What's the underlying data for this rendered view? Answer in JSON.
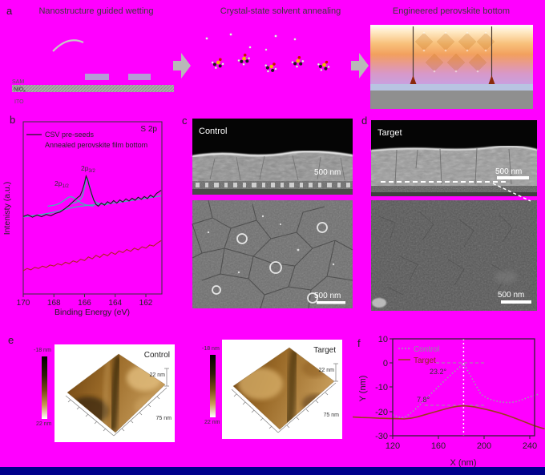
{
  "colors": {
    "background": "#FF00FF",
    "navy_strip": "#00008B",
    "xps_seed_curve": "#1a1a1a",
    "xps_fit": "#3cb8b2",
    "xps_annealed_curve": "#b22222",
    "profile_control": "#98a0aa",
    "profile_target": "#9c3b1e",
    "afm_brown": "#9a6a28",
    "perovskite_orange": "#f2a05e"
  },
  "figure": {
    "letters": [
      "a",
      "b",
      "c",
      "d",
      "e",
      "f"
    ],
    "scale_bar": "500 nm",
    "panel_a": {
      "titles": [
        "Nanostructure guided wetting",
        "Crystal-state solvent annealing",
        "Engineered perovskite bottom"
      ],
      "sam": "SAM",
      "niox_base": "NiO",
      "niox_sub": "x",
      "ito": "ITO"
    },
    "panel_b": {
      "peak_base": "2p",
      "peak1_sub": "1/2",
      "peak2_sub": "3/2"
    },
    "panel_c": {
      "label": "Control"
    },
    "panel_d": {
      "label": "Target"
    },
    "panel_e": {
      "control_label": "Control",
      "target_label": "Target",
      "cb_top": "-18 nm",
      "cb_bottom": "22 nm",
      "z_axis": "22 nm",
      "x_axis": "75 nm"
    }
  },
  "chart_data": [
    {
      "id": "xps_s2p",
      "type": "line",
      "title": "S 2p",
      "xlabel": "Binding Energy (eV)",
      "ylabel": "Intenisty (a.u.)",
      "x_ticks": [
        170,
        168,
        166,
        164,
        162
      ],
      "xlim": [
        170,
        161
      ],
      "legend_position": "top-left",
      "series": [
        {
          "name": "CSV pre-seeds",
          "color": "#1a1a1a",
          "points": [
            [
              170.0,
              45
            ],
            [
              169.7,
              46
            ],
            [
              169.4,
              44.6
            ],
            [
              169.1,
              45.8
            ],
            [
              168.8,
              44.9
            ],
            [
              168.5,
              46.2
            ],
            [
              168.2,
              45.4
            ],
            [
              167.9,
              46.8
            ],
            [
              167.6,
              47.6
            ],
            [
              167.3,
              49.4
            ],
            [
              167.0,
              51.5
            ],
            [
              166.8,
              53.2
            ],
            [
              166.6,
              54.8
            ],
            [
              166.45,
              56.0
            ],
            [
              166.3,
              57.0
            ],
            [
              166.15,
              60.0
            ],
            [
              166.0,
              64.5
            ],
            [
              165.9,
              68.5
            ],
            [
              165.8,
              66.5
            ],
            [
              165.7,
              63.0
            ],
            [
              165.55,
              58.5
            ],
            [
              165.4,
              54.5
            ],
            [
              165.25,
              52.0
            ],
            [
              165.1,
              51.0
            ],
            [
              164.9,
              52.8
            ],
            [
              164.7,
              51.6
            ],
            [
              164.5,
              53.6
            ],
            [
              164.3,
              52.4
            ],
            [
              164.1,
              54.2
            ],
            [
              163.9,
              52.8
            ],
            [
              163.7,
              54.6
            ],
            [
              163.5,
              53.4
            ],
            [
              163.3,
              55.2
            ],
            [
              163.1,
              54.0
            ],
            [
              162.9,
              55.6
            ],
            [
              162.7,
              54.4
            ],
            [
              162.5,
              56.2
            ],
            [
              162.3,
              55.0
            ],
            [
              162.1,
              56.6
            ],
            [
              161.9,
              55.4
            ],
            [
              161.7,
              57.4
            ],
            [
              161.5,
              56.2
            ],
            [
              161.3,
              58.4
            ],
            [
              161.1,
              59.6
            ],
            [
              161.0,
              60.2
            ]
          ]
        },
        {
          "name": "fit 2p3/2",
          "color": "#3cb8b2",
          "points": [
            [
              167.0,
              52.4
            ],
            [
              166.8,
              52.6
            ],
            [
              166.6,
              53.0
            ],
            [
              166.45,
              53.6
            ],
            [
              166.3,
              54.6
            ],
            [
              166.15,
              56.6
            ],
            [
              166.05,
              60.0
            ],
            [
              165.95,
              64.0
            ],
            [
              165.9,
              66.5
            ],
            [
              165.85,
              67.3
            ],
            [
              165.8,
              66.8
            ],
            [
              165.7,
              64.0
            ],
            [
              165.6,
              60.0
            ],
            [
              165.5,
              56.6
            ],
            [
              165.4,
              54.6
            ],
            [
              165.25,
              53.2
            ],
            [
              165.1,
              52.6
            ],
            [
              164.9,
              52.2
            ],
            [
              164.7,
              52.0
            ],
            [
              164.5,
              51.9
            ]
          ]
        },
        {
          "name": "fit 2p1/2",
          "color": "#3cb8b2",
          "points": [
            [
              168.4,
              51.0
            ],
            [
              168.2,
              51.2
            ],
            [
              168.0,
              51.5
            ],
            [
              167.8,
              52.0
            ],
            [
              167.6,
              52.8
            ],
            [
              167.4,
              53.9
            ],
            [
              167.2,
              55.2
            ],
            [
              167.05,
              56.1
            ],
            [
              166.9,
              56.5
            ],
            [
              166.75,
              56.1
            ],
            [
              166.6,
              55.2
            ],
            [
              166.4,
              53.9
            ],
            [
              166.2,
              52.8
            ],
            [
              166.0,
              52.0
            ],
            [
              165.8,
              51.5
            ],
            [
              165.6,
              51.2
            ],
            [
              165.4,
              51.0
            ]
          ]
        },
        {
          "name": "fit baseline",
          "color": "#3cb8b2",
          "points": [
            [
              170.0,
              44.8
            ],
            [
              169.5,
              45.3
            ],
            [
              169.0,
              45.9
            ],
            [
              168.5,
              46.6
            ],
            [
              168.0,
              47.5
            ],
            [
              167.5,
              48.6
            ],
            [
              167.0,
              49.7
            ],
            [
              166.5,
              50.6
            ],
            [
              166.0,
              51.2
            ],
            [
              165.5,
              51.7
            ],
            [
              165.0,
              52.1
            ],
            [
              164.5,
              52.5
            ],
            [
              164.0,
              53.0
            ],
            [
              163.5,
              53.6
            ],
            [
              163.0,
              54.2
            ],
            [
              162.5,
              54.9
            ],
            [
              162.0,
              55.6
            ],
            [
              161.5,
              56.3
            ],
            [
              161.0,
              57.0
            ]
          ]
        },
        {
          "name": "Annealed perovskite film bottom",
          "color": "#b22222",
          "points": [
            [
              170.0,
              13.5
            ],
            [
              169.75,
              14.8
            ],
            [
              169.5,
              14.0
            ],
            [
              169.25,
              15.5
            ],
            [
              169.0,
              14.8
            ],
            [
              168.75,
              16.2
            ],
            [
              168.5,
              15.4
            ],
            [
              168.25,
              16.8
            ],
            [
              168.0,
              16.2
            ],
            [
              167.75,
              17.6
            ],
            [
              167.5,
              16.8
            ],
            [
              167.25,
              18.4
            ],
            [
              167.0,
              17.6
            ],
            [
              166.75,
              19.2
            ],
            [
              166.5,
              18.4
            ],
            [
              166.25,
              20.2
            ],
            [
              166.0,
              19.4
            ],
            [
              165.75,
              21.5
            ],
            [
              165.5,
              20.4
            ],
            [
              165.25,
              22.4
            ],
            [
              165.0,
              21.2
            ],
            [
              164.75,
              23.2
            ],
            [
              164.5,
              22.2
            ],
            [
              164.25,
              24.2
            ],
            [
              164.0,
              23.0
            ],
            [
              163.75,
              25.0
            ],
            [
              163.5,
              24.0
            ],
            [
              163.25,
              25.8
            ],
            [
              163.0,
              24.8
            ],
            [
              162.75,
              26.6
            ],
            [
              162.5,
              25.6
            ],
            [
              162.25,
              27.4
            ],
            [
              162.0,
              26.6
            ],
            [
              161.75,
              28.4
            ],
            [
              161.5,
              27.8
            ],
            [
              161.25,
              29.6
            ],
            [
              161.0,
              31.0
            ]
          ]
        }
      ]
    },
    {
      "id": "afm_line_profile",
      "type": "line",
      "xlabel": "X (nm)",
      "ylabel": "Y (nm)",
      "x_ticks": [
        120,
        160,
        200,
        240
      ],
      "y_ticks": [
        10,
        0,
        -10,
        -20,
        -30
      ],
      "xlim": [
        120,
        244
      ],
      "ylim": [
        -30,
        10
      ],
      "annotations": {
        "control_angle": "23.2°",
        "target_angle": "7.8°"
      },
      "series": [
        {
          "name": "Control",
          "color": "#98a0aa",
          "points": [
            [
              120,
              -21.4
            ],
            [
              124,
              -22.1
            ],
            [
              128,
              -22.6
            ],
            [
              132,
              -22.0
            ],
            [
              136,
              -20.6
            ],
            [
              140,
              -19.0
            ],
            [
              144,
              -17.2
            ],
            [
              148,
              -15.2
            ],
            [
              152,
              -13.4
            ],
            [
              156,
              -11.6
            ],
            [
              160,
              -9.8
            ],
            [
              164,
              -8.0
            ],
            [
              168,
              -6.2
            ],
            [
              172,
              -4.4
            ],
            [
              176,
              -2.8
            ],
            [
              179,
              -1.6
            ],
            [
              182,
              -0.4
            ],
            [
              184,
              -1.8
            ],
            [
              186,
              -3.6
            ],
            [
              189,
              -6.0
            ],
            [
              192,
              -8.6
            ],
            [
              195,
              -11.0
            ],
            [
              197,
              -12.8
            ],
            [
              200,
              -13.8
            ],
            [
              204,
              -14.8
            ],
            [
              208,
              -15.4
            ],
            [
              212,
              -15.9
            ],
            [
              216,
              -16.2
            ],
            [
              220,
              -16.3
            ],
            [
              224,
              -16.3
            ],
            [
              228,
              -16.0
            ],
            [
              232,
              -15.4
            ],
            [
              236,
              -14.7
            ],
            [
              240,
              -14.0
            ],
            [
              244,
              -13.4
            ],
            [
              247,
              -13.0
            ]
          ]
        },
        {
          "name": "Target",
          "color": "#9c3b1e",
          "points": [
            [
              85,
              -22.3
            ],
            [
              92,
              -22.5
            ],
            [
              100,
              -22.6
            ],
            [
              108,
              -22.8
            ],
            [
              116,
              -22.9
            ],
            [
              124,
              -23.0
            ],
            [
              130,
              -23.1
            ],
            [
              136,
              -22.8
            ],
            [
              142,
              -22.2
            ],
            [
              148,
              -21.4
            ],
            [
              154,
              -20.6
            ],
            [
              160,
              -19.8
            ],
            [
              166,
              -19.0
            ],
            [
              172,
              -18.3
            ],
            [
              177,
              -17.9
            ],
            [
              182,
              -17.7
            ],
            [
              187,
              -17.9
            ],
            [
              192,
              -18.2
            ],
            [
              197,
              -18.7
            ],
            [
              202,
              -19.2
            ],
            [
              208,
              -19.9
            ],
            [
              214,
              -20.7
            ],
            [
              220,
              -21.6
            ],
            [
              226,
              -22.6
            ],
            [
              232,
              -23.7
            ],
            [
              238,
              -24.8
            ],
            [
              244,
              -25.9
            ],
            [
              250,
              -26.8
            ],
            [
              253,
              -27.2
            ]
          ]
        }
      ]
    }
  ]
}
